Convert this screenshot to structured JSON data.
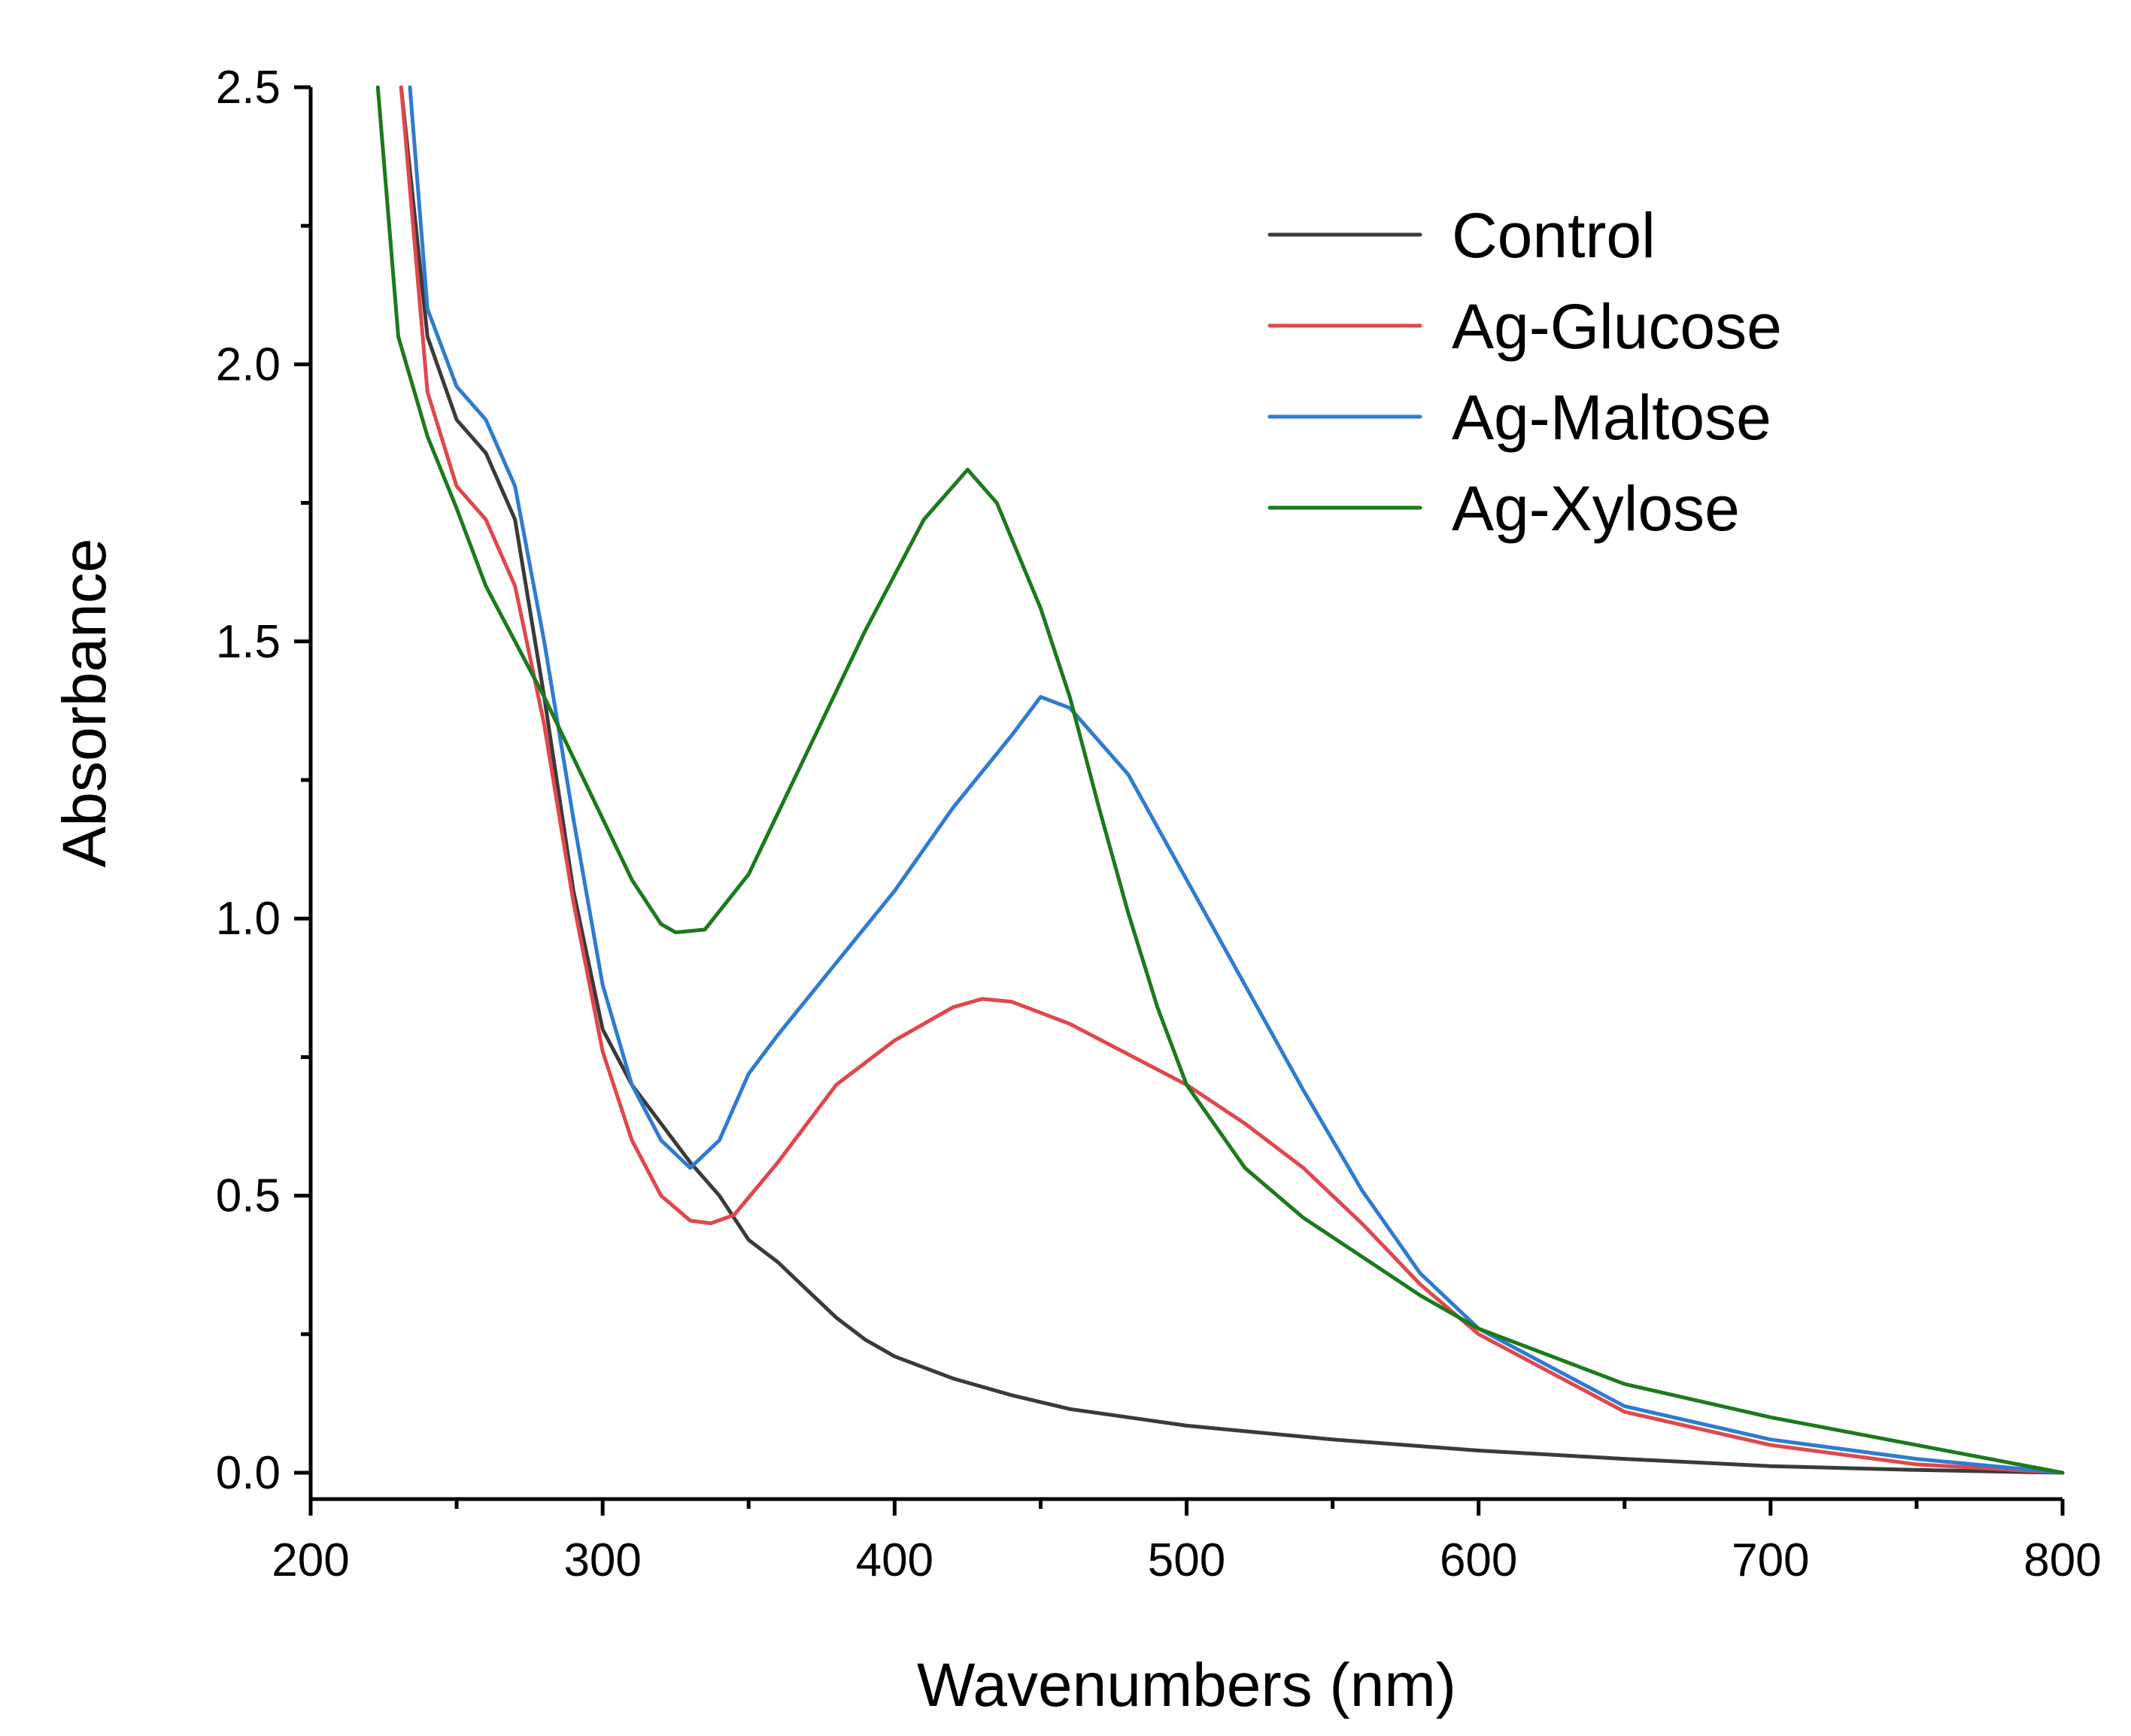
{
  "chart_data": {
    "type": "line",
    "title": "",
    "xlabel": "Wavenumbers (nm)",
    "ylabel": "Absorbance",
    "xlim": [
      200,
      800
    ],
    "ylim": [
      -0.05,
      2.5
    ],
    "x_ticks": [
      200,
      300,
      400,
      500,
      600,
      700,
      800
    ],
    "x_tick_labels": [
      "200",
      "300",
      "400",
      "500",
      "600",
      "700",
      "800"
    ],
    "y_ticks": [
      0.0,
      0.5,
      1.0,
      1.5,
      2.0,
      2.5
    ],
    "y_tick_labels": [
      "0.0",
      "0.5",
      "1.0",
      "1.5",
      "2.0",
      "2.5"
    ],
    "grid": false,
    "legend_position": "top-right",
    "series": [
      {
        "name": "Control",
        "color": "#3a3a3a",
        "points": [
          [
            231,
            2.5
          ],
          [
            240,
            2.05
          ],
          [
            250,
            1.9
          ],
          [
            260,
            1.84
          ],
          [
            270,
            1.72
          ],
          [
            280,
            1.4
          ],
          [
            290,
            1.05
          ],
          [
            300,
            0.8
          ],
          [
            310,
            0.7
          ],
          [
            320,
            0.63
          ],
          [
            330,
            0.56
          ],
          [
            340,
            0.5
          ],
          [
            350,
            0.42
          ],
          [
            360,
            0.38
          ],
          [
            370,
            0.33
          ],
          [
            380,
            0.28
          ],
          [
            390,
            0.24
          ],
          [
            400,
            0.21
          ],
          [
            420,
            0.17
          ],
          [
            440,
            0.14
          ],
          [
            460,
            0.115
          ],
          [
            480,
            0.1
          ],
          [
            500,
            0.085
          ],
          [
            550,
            0.06
          ],
          [
            600,
            0.04
          ],
          [
            650,
            0.025
          ],
          [
            700,
            0.012
          ],
          [
            750,
            0.005
          ],
          [
            800,
            0.0
          ]
        ]
      },
      {
        "name": "Ag-Glucose",
        "color": "#e0474c",
        "points": [
          [
            231,
            2.5
          ],
          [
            240,
            1.95
          ],
          [
            250,
            1.78
          ],
          [
            260,
            1.72
          ],
          [
            270,
            1.6
          ],
          [
            280,
            1.35
          ],
          [
            290,
            1.03
          ],
          [
            300,
            0.76
          ],
          [
            310,
            0.6
          ],
          [
            320,
            0.5
          ],
          [
            330,
            0.455
          ],
          [
            337,
            0.45
          ],
          [
            345,
            0.465
          ],
          [
            360,
            0.56
          ],
          [
            380,
            0.7
          ],
          [
            400,
            0.78
          ],
          [
            420,
            0.84
          ],
          [
            430,
            0.855
          ],
          [
            440,
            0.85
          ],
          [
            460,
            0.81
          ],
          [
            480,
            0.755
          ],
          [
            500,
            0.7
          ],
          [
            520,
            0.63
          ],
          [
            540,
            0.55
          ],
          [
            560,
            0.45
          ],
          [
            580,
            0.34
          ],
          [
            600,
            0.25
          ],
          [
            650,
            0.11
          ],
          [
            700,
            0.05
          ],
          [
            750,
            0.015
          ],
          [
            800,
            0.0
          ]
        ]
      },
      {
        "name": "Ag-Maltose",
        "color": "#2f7bd0",
        "points": [
          [
            234,
            2.5
          ],
          [
            240,
            2.1
          ],
          [
            250,
            1.96
          ],
          [
            260,
            1.9
          ],
          [
            270,
            1.78
          ],
          [
            280,
            1.5
          ],
          [
            290,
            1.18
          ],
          [
            300,
            0.88
          ],
          [
            310,
            0.7
          ],
          [
            320,
            0.6
          ],
          [
            330,
            0.55
          ],
          [
            340,
            0.6
          ],
          [
            350,
            0.72
          ],
          [
            360,
            0.79
          ],
          [
            380,
            0.92
          ],
          [
            400,
            1.05
          ],
          [
            420,
            1.2
          ],
          [
            440,
            1.33
          ],
          [
            450,
            1.4
          ],
          [
            460,
            1.38
          ],
          [
            480,
            1.26
          ],
          [
            500,
            1.07
          ],
          [
            520,
            0.88
          ],
          [
            540,
            0.69
          ],
          [
            560,
            0.51
          ],
          [
            580,
            0.36
          ],
          [
            600,
            0.26
          ],
          [
            650,
            0.12
          ],
          [
            700,
            0.06
          ],
          [
            750,
            0.025
          ],
          [
            800,
            0.0
          ]
        ]
      },
      {
        "name": "Ag-Xylose",
        "color": "#1c7a1c",
        "points": [
          [
            223,
            2.5
          ],
          [
            230,
            2.05
          ],
          [
            240,
            1.87
          ],
          [
            250,
            1.74
          ],
          [
            260,
            1.6
          ],
          [
            270,
            1.5
          ],
          [
            280,
            1.4
          ],
          [
            290,
            1.29
          ],
          [
            300,
            1.18
          ],
          [
            310,
            1.07
          ],
          [
            320,
            0.99
          ],
          [
            325,
            0.975
          ],
          [
            335,
            0.98
          ],
          [
            350,
            1.08
          ],
          [
            370,
            1.3
          ],
          [
            390,
            1.52
          ],
          [
            410,
            1.72
          ],
          [
            420,
            1.78
          ],
          [
            425,
            1.81
          ],
          [
            435,
            1.75
          ],
          [
            450,
            1.56
          ],
          [
            460,
            1.4
          ],
          [
            470,
            1.2
          ],
          [
            480,
            1.01
          ],
          [
            490,
            0.84
          ],
          [
            500,
            0.7
          ],
          [
            520,
            0.55
          ],
          [
            540,
            0.46
          ],
          [
            560,
            0.39
          ],
          [
            580,
            0.32
          ],
          [
            600,
            0.26
          ],
          [
            650,
            0.16
          ],
          [
            700,
            0.1
          ],
          [
            750,
            0.05
          ],
          [
            800,
            0.0
          ]
        ]
      }
    ]
  }
}
